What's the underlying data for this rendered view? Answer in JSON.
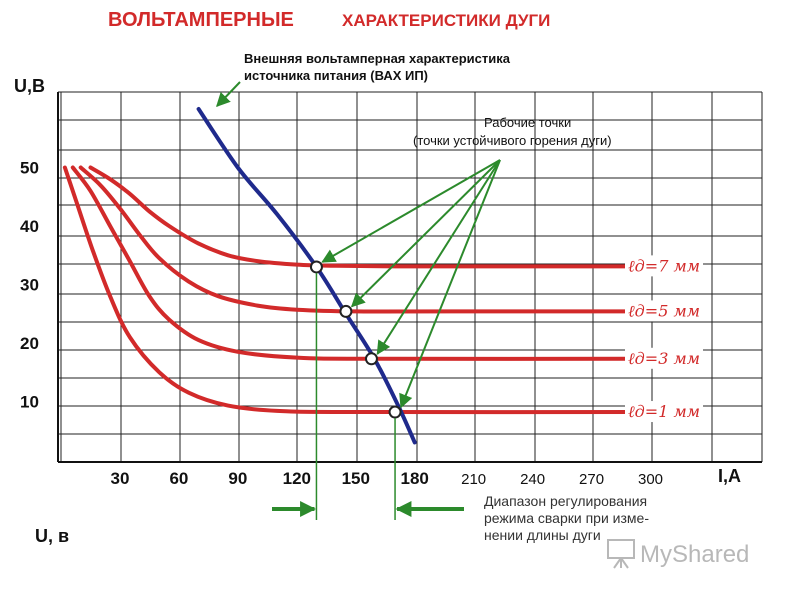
{
  "header": {
    "title_part1": "ВОЛЬТАМПЕРНЫЕ",
    "title_part2": "ХАРАКТЕРИСТИКИ ДУГИ"
  },
  "annotations": {
    "source_line1": "Внешняя вольтамперная характеристика",
    "source_line2": "источника питания (ВАХ ИП)",
    "working_line1": "Рабочие точки",
    "working_line2": "(точки устойчивого горения дуги)",
    "range_line1": "Диапазон регулирования",
    "range_line2": "режима сварки при изме-",
    "range_line3": "нении длины дуги"
  },
  "watermark": {
    "text": "MyShared",
    "icon": "presentation-board-icon"
  },
  "bottom_label": "U, в",
  "colors": {
    "arc_curves": "#d22a2a",
    "source_curve": "#1f2a8c",
    "arrows": "#2c8a2c",
    "grid": "#222222",
    "title": "#d22a2a"
  },
  "chart_data": {
    "type": "line",
    "title": "ВОЛЬТАМПЕРНЫЕ ХАРАКТЕРИСТИКИ ДУГИ",
    "xlabel": "I,A",
    "ylabel": "U,B",
    "xlim": [
      0,
      320
    ],
    "ylim": [
      0,
      58
    ],
    "x_ticks": [
      30,
      60,
      90,
      120,
      150,
      180,
      210,
      240,
      270,
      300
    ],
    "y_ticks": [
      10,
      20,
      30,
      40,
      50
    ],
    "grid": true,
    "series": [
      {
        "name": "ℓд=7 мм",
        "color": "#d22a2a",
        "x": [
          15,
          25,
          35,
          45,
          55,
          70,
          85,
          100,
          120,
          140,
          170,
          220,
          300
        ],
        "y": [
          50,
          48,
          45.5,
          42.5,
          40,
          37,
          35,
          34,
          33.4,
          33.2,
          33.1,
          33.1,
          33.1
        ]
      },
      {
        "name": "ℓд=5 мм",
        "color": "#d22a2a",
        "x": [
          10,
          20,
          30,
          40,
          50,
          65,
          80,
          100,
          120,
          150,
          200,
          300
        ],
        "y": [
          50,
          47,
          43,
          38.5,
          34.5,
          30.5,
          28,
          26.4,
          25.7,
          25.4,
          25.4,
          25.4
        ]
      },
      {
        "name": "ℓд=3 мм",
        "color": "#d22a2a",
        "x": [
          6,
          15,
          25,
          35,
          45,
          55,
          70,
          90,
          120,
          160,
          300
        ],
        "y": [
          50,
          46,
          40,
          34,
          28,
          24,
          20.5,
          18.5,
          17.5,
          17.3,
          17.3
        ]
      },
      {
        "name": "ℓд=1 мм",
        "color": "#d22a2a",
        "x": [
          2,
          8,
          16,
          25,
          35,
          50,
          65,
          85,
          110,
          150,
          300
        ],
        "y": [
          50,
          44,
          36,
          28,
          21,
          15,
          11.5,
          9.3,
          8.4,
          8.2,
          8.2
        ]
      },
      {
        "name": "ВАХ ИП",
        "color": "#1f2a8c",
        "x": [
          70,
          90,
          110,
          130,
          145,
          160,
          172,
          180
        ],
        "y": [
          60,
          50,
          42,
          33,
          25,
          17,
          9,
          3
        ]
      }
    ],
    "working_points": [
      {
        "x": 130,
        "y": 33
      },
      {
        "x": 145,
        "y": 25.4
      },
      {
        "x": 158,
        "y": 17.3
      },
      {
        "x": 170,
        "y": 8.2
      }
    ],
    "curve_labels": [
      "ℓд=7 мм",
      "ℓд=5 мм",
      "ℓд=3 мм",
      "ℓд=1 мм"
    ],
    "regulation_range": [
      130,
      170
    ]
  }
}
